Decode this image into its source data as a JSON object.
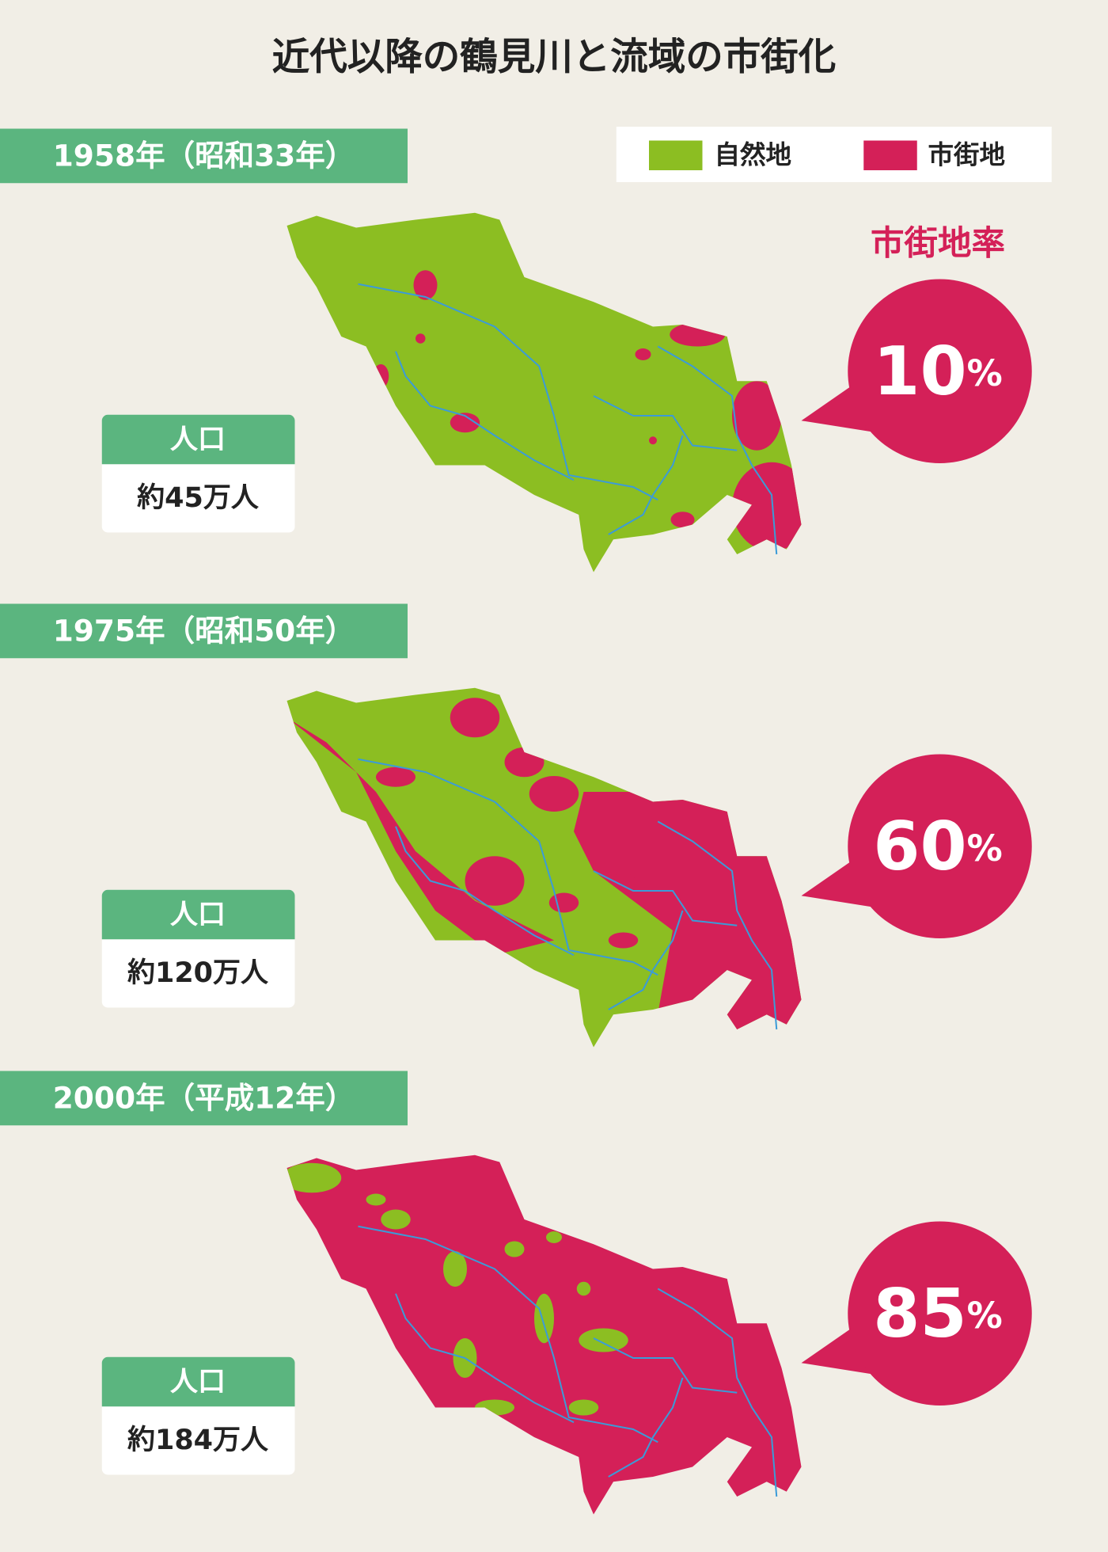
{
  "title": "近代以降の鶴見川と流域の市街化",
  "legend": [
    {
      "label": "自然地"
    },
    {
      "label": "市街地"
    }
  ],
  "rate_heading": "市街地率",
  "panels": [
    {
      "year": "1958年（昭和33年）",
      "population_label": "人口",
      "population": "約45万人",
      "rate": "10",
      "rate_unit": "%"
    },
    {
      "year": "1975年（昭和50年）",
      "population_label": "人口",
      "population": "約120万人",
      "rate": "60",
      "rate_unit": "%"
    },
    {
      "year": "2000年（平成12年）",
      "population_label": "人口",
      "population": "約184万人",
      "rate": "85",
      "rate_unit": "%"
    }
  ]
}
